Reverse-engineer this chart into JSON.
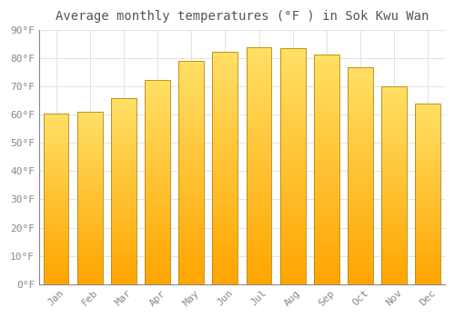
{
  "title": "Average monthly temperatures (°F ) in Sok Kwu Wan",
  "months": [
    "Jan",
    "Feb",
    "Mar",
    "Apr",
    "May",
    "Jun",
    "Jul",
    "Aug",
    "Sep",
    "Oct",
    "Nov",
    "Dec"
  ],
  "values": [
    60.5,
    61.0,
    66.0,
    72.5,
    79.0,
    82.5,
    84.0,
    83.5,
    81.5,
    77.0,
    70.0,
    64.0
  ],
  "bar_color_top": "#FFD966",
  "bar_color_bottom": "#FFA500",
  "bar_edge_color": "#B8860B",
  "background_color": "#FFFFFF",
  "grid_color": "#DDDDDD",
  "title_fontsize": 10,
  "tick_fontsize": 8,
  "tick_color": "#888888",
  "title_color": "#555555",
  "ylim": [
    0,
    90
  ],
  "yticks": [
    0,
    10,
    20,
    30,
    40,
    50,
    60,
    70,
    80,
    90
  ],
  "bar_width": 0.75
}
